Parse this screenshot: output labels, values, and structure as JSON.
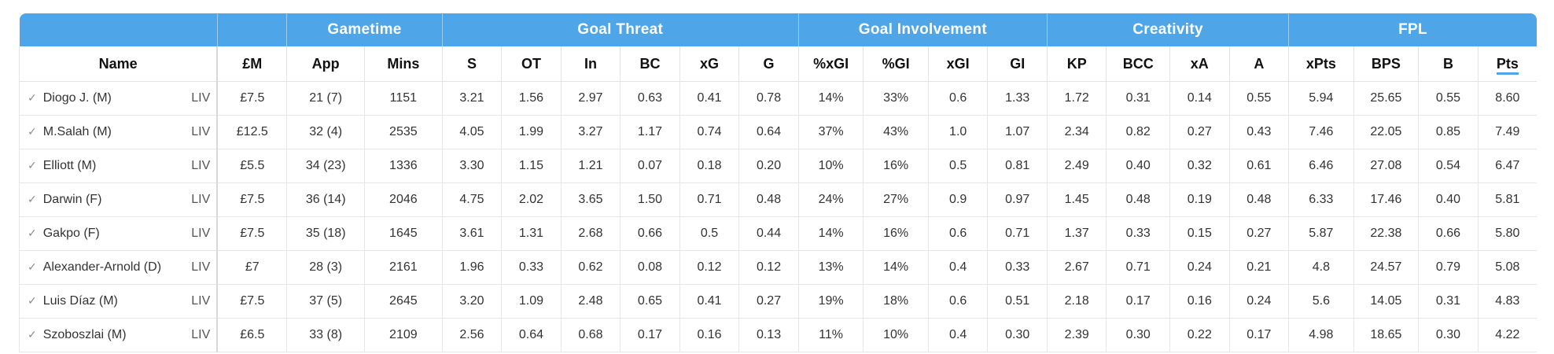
{
  "groups": [
    {
      "label": "",
      "span": 1
    },
    {
      "label": "",
      "span": 1
    },
    {
      "label": "Gametime",
      "span": 2
    },
    {
      "label": "Goal Threat",
      "span": 6
    },
    {
      "label": "Goal Involvement",
      "span": 4
    },
    {
      "label": "Creativity",
      "span": 4
    },
    {
      "label": "FPL",
      "span": 4
    }
  ],
  "columns": [
    "Name",
    "£M",
    "App",
    "Mins",
    "S",
    "OT",
    "In",
    "BC",
    "xG",
    "G",
    "%xGI",
    "%GI",
    "xGI",
    "GI",
    "KP",
    "BCC",
    "xA",
    "A",
    "xPts",
    "BPS",
    "B",
    "Pts"
  ],
  "sorted_column": "Pts",
  "accent_color": "#4ea6e8",
  "row_icon": "check-icon",
  "rows": [
    {
      "name": "Diogo J. (M)",
      "team": "LIV",
      "cells": [
        "£7.5",
        "21 (7)",
        "1151",
        "3.21",
        "1.56",
        "2.97",
        "0.63",
        "0.41",
        "0.78",
        "14%",
        "33%",
        "0.6",
        "1.33",
        "1.72",
        "0.31",
        "0.14",
        "0.55",
        "5.94",
        "25.65",
        "0.55",
        "8.60"
      ]
    },
    {
      "name": "M.Salah (M)",
      "team": "LIV",
      "cells": [
        "£12.5",
        "32 (4)",
        "2535",
        "4.05",
        "1.99",
        "3.27",
        "1.17",
        "0.74",
        "0.64",
        "37%",
        "43%",
        "1.0",
        "1.07",
        "2.34",
        "0.82",
        "0.27",
        "0.43",
        "7.46",
        "22.05",
        "0.85",
        "7.49"
      ]
    },
    {
      "name": "Elliott (M)",
      "team": "LIV",
      "cells": [
        "£5.5",
        "34 (23)",
        "1336",
        "3.30",
        "1.15",
        "1.21",
        "0.07",
        "0.18",
        "0.20",
        "10%",
        "16%",
        "0.5",
        "0.81",
        "2.49",
        "0.40",
        "0.32",
        "0.61",
        "6.46",
        "27.08",
        "0.54",
        "6.47"
      ]
    },
    {
      "name": "Darwin (F)",
      "team": "LIV",
      "cells": [
        "£7.5",
        "36 (14)",
        "2046",
        "4.75",
        "2.02",
        "3.65",
        "1.50",
        "0.71",
        "0.48",
        "24%",
        "27%",
        "0.9",
        "0.97",
        "1.45",
        "0.48",
        "0.19",
        "0.48",
        "6.33",
        "17.46",
        "0.40",
        "5.81"
      ]
    },
    {
      "name": "Gakpo (F)",
      "team": "LIV",
      "cells": [
        "£7.5",
        "35 (18)",
        "1645",
        "3.61",
        "1.31",
        "2.68",
        "0.66",
        "0.5",
        "0.44",
        "14%",
        "16%",
        "0.6",
        "0.71",
        "1.37",
        "0.33",
        "0.15",
        "0.27",
        "5.87",
        "22.38",
        "0.66",
        "5.80"
      ]
    },
    {
      "name": "Alexander-Arnold (D)",
      "team": "LIV",
      "cells": [
        "£7",
        "28 (3)",
        "2161",
        "1.96",
        "0.33",
        "0.62",
        "0.08",
        "0.12",
        "0.12",
        "13%",
        "14%",
        "0.4",
        "0.33",
        "2.67",
        "0.71",
        "0.24",
        "0.21",
        "4.8",
        "24.57",
        "0.79",
        "5.08"
      ]
    },
    {
      "name": "Luis Díaz (M)",
      "team": "LIV",
      "cells": [
        "£7.5",
        "37 (5)",
        "2645",
        "3.20",
        "1.09",
        "2.48",
        "0.65",
        "0.41",
        "0.27",
        "19%",
        "18%",
        "0.6",
        "0.51",
        "2.18",
        "0.17",
        "0.16",
        "0.24",
        "5.6",
        "14.05",
        "0.31",
        "4.83"
      ]
    },
    {
      "name": "Szoboszlai (M)",
      "team": "LIV",
      "cells": [
        "£6.5",
        "33 (8)",
        "2109",
        "2.56",
        "0.64",
        "0.68",
        "0.17",
        "0.16",
        "0.13",
        "11%",
        "10%",
        "0.4",
        "0.30",
        "2.39",
        "0.30",
        "0.22",
        "0.17",
        "4.98",
        "18.65",
        "0.30",
        "4.22"
      ]
    }
  ]
}
